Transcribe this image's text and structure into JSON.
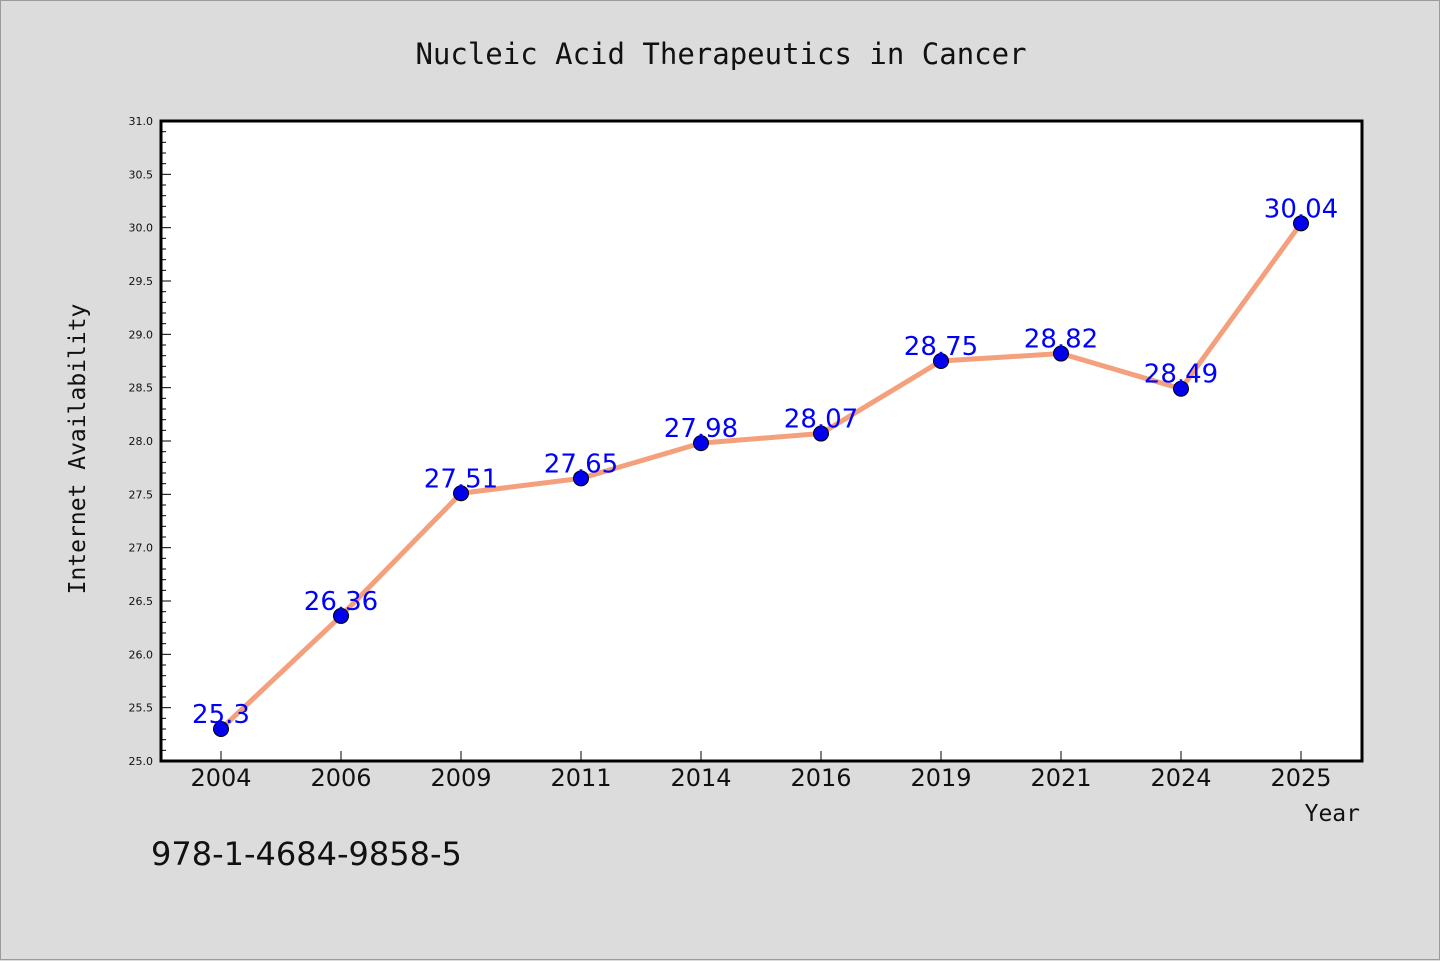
{
  "chart_data": {
    "type": "line",
    "title": "Nucleic Acid Therapeutics in Cancer",
    "xlabel": "Year",
    "ylabel": "Internet Availability",
    "categories": [
      "2004",
      "2006",
      "2009",
      "2011",
      "2014",
      "2016",
      "2019",
      "2021",
      "2024",
      "2025"
    ],
    "values": [
      25.3,
      26.36,
      27.51,
      27.65,
      27.98,
      28.07,
      28.75,
      28.82,
      28.49,
      30.04
    ],
    "data_labels": [
      "25.3",
      "26.36",
      "27.51",
      "27.65",
      "27.98",
      "28.07",
      "28.75",
      "28.82",
      "28.49",
      "30.04"
    ],
    "ylim": [
      25.0,
      31.0
    ],
    "yticks": [
      "25.0",
      "25.5",
      "26.0",
      "26.5",
      "27.0",
      "27.5",
      "28.0",
      "28.5",
      "29.0",
      "29.5",
      "30.0",
      "30.5",
      "31.0"
    ],
    "grid": false,
    "legend": "none",
    "colors": {
      "line": "#f4a07c",
      "marker": "#0000ee",
      "label": "#0000ff",
      "plot_background": "#ffffff",
      "page_background": "#dcdcdc"
    }
  },
  "footer": {
    "isbn": "978-1-4684-9858-5"
  }
}
